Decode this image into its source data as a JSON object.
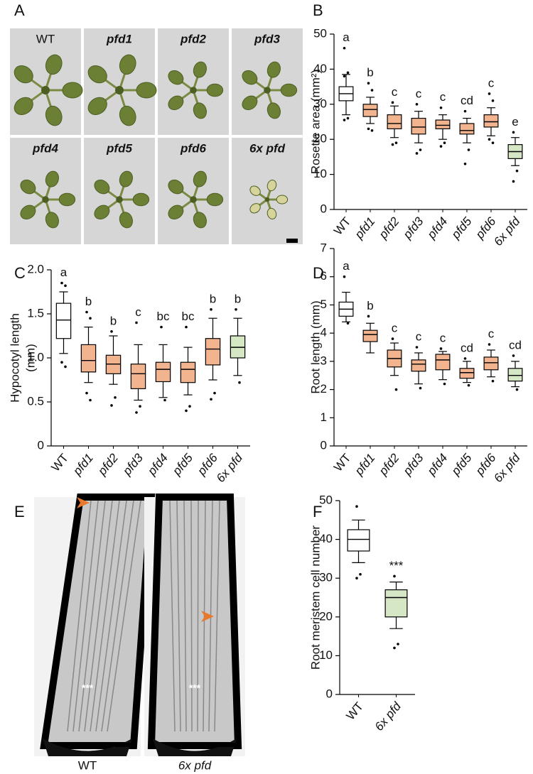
{
  "panel_letters": [
    "A",
    "B",
    "C",
    "D",
    "E",
    "F"
  ],
  "photos_A": {
    "labels": [
      "WT",
      "pfd1",
      "pfd2",
      "pfd3",
      "pfd4",
      "pfd5",
      "pfd6",
      "6x pfd"
    ]
  },
  "photos_E": {
    "labels": [
      "WT",
      "6x pfd"
    ],
    "stem_cell_marks": [
      "***",
      "***"
    ]
  },
  "chart_data": [
    {
      "type": "box",
      "ylabel": "Rosette area (mm²)",
      "categories": [
        "WT",
        "pfd1",
        "pfd2",
        "pfd3",
        "pfd4",
        "pfd5",
        "pfd6",
        "6x pfd"
      ],
      "colors": [
        "#ffffff",
        "#f2b48e",
        "#f2b48e",
        "#f2b48e",
        "#f2b48e",
        "#f2b48e",
        "#f2b48e",
        "#d5e7c4"
      ],
      "boxes": [
        {
          "whislo": 27,
          "q1": 31,
          "med": 33,
          "q3": 35,
          "whishi": 38.5,
          "fliers": [
            46,
            39,
            38,
            26,
            25.5
          ]
        },
        {
          "whislo": 24.5,
          "q1": 26.5,
          "med": 28.5,
          "q3": 30,
          "whishi": 32,
          "fliers": [
            36,
            34,
            23,
            22.5
          ]
        },
        {
          "whislo": 20.5,
          "q1": 23,
          "med": 24.5,
          "q3": 27,
          "whishi": 29.5,
          "fliers": [
            30.5,
            19,
            18.5
          ]
        },
        {
          "whislo": 19,
          "q1": 21.5,
          "med": 23.5,
          "q3": 26,
          "whishi": 28,
          "fliers": [
            30,
            17,
            16
          ]
        },
        {
          "whislo": 20,
          "q1": 23,
          "med": 24,
          "q3": 25.5,
          "whishi": 27,
          "fliers": [
            29,
            19,
            18
          ]
        },
        {
          "whislo": 19,
          "q1": 21.5,
          "med": 22.5,
          "q3": 24.5,
          "whishi": 26,
          "fliers": [
            28,
            17,
            13
          ]
        },
        {
          "whislo": 21,
          "q1": 23.5,
          "med": 25,
          "q3": 27,
          "whishi": 29,
          "fliers": [
            33,
            31,
            20,
            19
          ]
        },
        {
          "whislo": 12.5,
          "q1": 14.5,
          "med": 16.5,
          "q3": 18.5,
          "whishi": 20.5,
          "fliers": [
            22,
            11,
            8
          ]
        }
      ],
      "annotations": [
        "a",
        "b",
        "c",
        "c",
        "c",
        "cd",
        "c",
        "e"
      ],
      "ylim": [
        0,
        50
      ],
      "yticks": [
        0,
        10,
        20,
        30,
        40,
        50
      ]
    },
    {
      "type": "box",
      "ylabel": [
        "Hypocotyl length",
        "(mm)"
      ],
      "categories": [
        "WT",
        "pfd1",
        "pfd2",
        "pfd3",
        "pfd4",
        "pfd5",
        "pfd6",
        "6x pfd"
      ],
      "colors": [
        "#ffffff",
        "#f2b48e",
        "#f2b48e",
        "#f2b48e",
        "#f2b48e",
        "#f2b48e",
        "#f2b48e",
        "#d5e7c4"
      ],
      "boxes": [
        {
          "whislo": 1.05,
          "q1": 1.22,
          "med": 1.43,
          "q3": 1.62,
          "whishi": 1.75,
          "fliers": [
            1.85,
            1.82,
            0.95,
            0.9
          ]
        },
        {
          "whislo": 0.72,
          "q1": 0.84,
          "med": 0.97,
          "q3": 1.15,
          "whishi": 1.35,
          "fliers": [
            1.52,
            1.45,
            0.6,
            0.52
          ]
        },
        {
          "whislo": 0.7,
          "q1": 0.82,
          "med": 0.93,
          "q3": 1.03,
          "whishi": 1.25,
          "fliers": [
            1.3,
            0.55,
            0.46
          ]
        },
        {
          "whislo": 0.52,
          "q1": 0.65,
          "med": 0.82,
          "q3": 0.93,
          "whishi": 1.15,
          "fliers": [
            1.4,
            0.45,
            0.38
          ]
        },
        {
          "whislo": 0.55,
          "q1": 0.73,
          "med": 0.87,
          "q3": 0.95,
          "whishi": 1.15,
          "fliers": [
            1.35,
            0.52
          ]
        },
        {
          "whislo": 0.58,
          "q1": 0.72,
          "med": 0.87,
          "q3": 0.95,
          "whishi": 1.12,
          "fliers": [
            1.35,
            0.45,
            0.4
          ]
        },
        {
          "whislo": 0.75,
          "q1": 0.92,
          "med": 1.1,
          "q3": 1.22,
          "whishi": 1.45,
          "fliers": [
            1.55,
            0.6,
            0.53
          ]
        },
        {
          "whislo": 0.8,
          "q1": 1.0,
          "med": 1.12,
          "q3": 1.25,
          "whishi": 1.45,
          "fliers": [
            1.55,
            0.72
          ]
        }
      ],
      "annotations": [
        "a",
        "b",
        "b",
        "c",
        "bc",
        "bc",
        "b",
        "b"
      ],
      "ylim": [
        0,
        2
      ],
      "yticks": [
        0,
        0.5,
        {
          "value": 1,
          "label": "1.0"
        },
        1.5,
        {
          "value": 2,
          "label": "2.0"
        }
      ]
    },
    {
      "type": "box",
      "ylabel": "Root length (mm)",
      "categories": [
        "WT",
        "pfd1",
        "pfd2",
        "pfd3",
        "pfd4",
        "pfd5",
        "pfd6",
        "6x pfd"
      ],
      "colors": [
        "#ffffff",
        "#f2b48e",
        "#f2b48e",
        "#f2b48e",
        "#f2b48e",
        "#f2b48e",
        "#f2b48e",
        "#d5e7c4"
      ],
      "boxes": [
        {
          "whislo": 4.4,
          "q1": 4.6,
          "med": 4.85,
          "q3": 5.1,
          "whishi": 5.45,
          "fliers": [
            6.0,
            4.35
          ]
        },
        {
          "whislo": 3.3,
          "q1": 3.7,
          "med": 3.95,
          "q3": 4.1,
          "whishi": 4.35,
          "fliers": [
            4.6
          ]
        },
        {
          "whislo": 2.5,
          "q1": 2.8,
          "med": 3.1,
          "q3": 3.4,
          "whishi": 3.65,
          "fliers": [
            3.8,
            2.0
          ]
        },
        {
          "whislo": 2.2,
          "q1": 2.65,
          "med": 2.9,
          "q3": 3.05,
          "whishi": 3.3,
          "fliers": [
            3.5,
            2.05
          ]
        },
        {
          "whislo": 2.35,
          "q1": 2.7,
          "med": 3.05,
          "q3": 3.25,
          "whishi": 3.35,
          "fliers": [
            3.45,
            2.2
          ]
        },
        {
          "whislo": 2.25,
          "q1": 2.4,
          "med": 2.6,
          "q3": 2.75,
          "whishi": 3.0,
          "fliers": [
            3.1,
            2.15
          ]
        },
        {
          "whislo": 2.45,
          "q1": 2.7,
          "med": 2.95,
          "q3": 3.15,
          "whishi": 3.4,
          "fliers": [
            3.6,
            2.3
          ]
        },
        {
          "whislo": 2.1,
          "q1": 2.3,
          "med": 2.5,
          "q3": 2.75,
          "whishi": 3.0,
          "fliers": [
            3.2,
            2.0
          ]
        }
      ],
      "annotations": [
        "a",
        "b",
        "c",
        "c",
        "c",
        "cd",
        "c",
        "cd"
      ],
      "ylim": [
        0,
        7
      ],
      "yticks": [
        0,
        1,
        2,
        3,
        4,
        5,
        6,
        7
      ]
    },
    {
      "type": "box",
      "ylabel": "Root meristem cell number",
      "categories": [
        "WT",
        "6x pfd"
      ],
      "colors": [
        "#ffffff",
        "#d5e7c4"
      ],
      "boxes": [
        {
          "whislo": 34,
          "q1": 37,
          "med": 40,
          "q3": 42.5,
          "whishi": 45,
          "fliers": [
            48.5,
            31,
            30
          ]
        },
        {
          "whislo": 17,
          "q1": 20,
          "med": 25,
          "q3": 27,
          "whishi": 29,
          "fliers": [
            30.5,
            13,
            12
          ]
        }
      ],
      "annotations": [
        null,
        "***"
      ],
      "ylim": [
        0,
        50
      ],
      "yticks": [
        0,
        10,
        20,
        30,
        40,
        50
      ]
    }
  ]
}
